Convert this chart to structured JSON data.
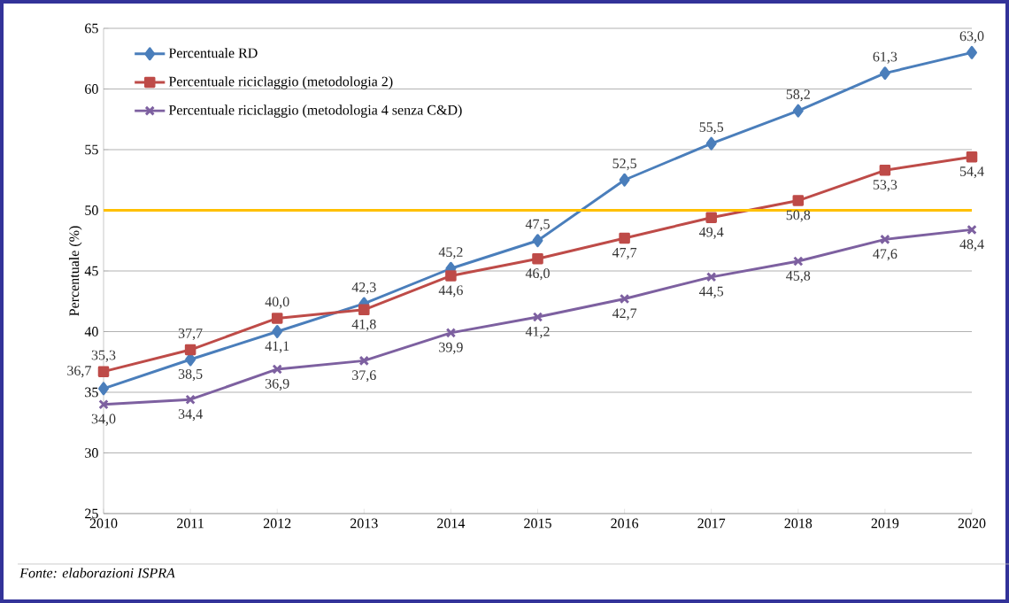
{
  "chart_data": {
    "type": "line",
    "ylabel": "Percentuale (%)",
    "categories": [
      "2010",
      "2011",
      "2012",
      "2013",
      "2014",
      "2015",
      "2016",
      "2017",
      "2018",
      "2019",
      "2020"
    ],
    "ylim": [
      25,
      65
    ],
    "yticks": [
      25,
      30,
      35,
      40,
      45,
      50,
      55,
      60,
      65
    ],
    "grid": "y",
    "legend": "top left",
    "line_style": "solid",
    "series": [
      {
        "name": "Percentuale RD",
        "color": "#4a7ebb",
        "marker": "diamond",
        "values": [
          35.3,
          37.7,
          40.0,
          42.3,
          45.2,
          47.5,
          52.5,
          55.5,
          58.2,
          61.3,
          63.0
        ],
        "value_labels": [
          "35,3",
          "37,7",
          "40,0",
          "42,3",
          "45,2",
          "47,5",
          "52,5",
          "55,5",
          "58,2",
          "61,3",
          "63,0"
        ]
      },
      {
        "name": "Percentuale riciclaggio (metodologia 2)",
        "color": "#be4b48",
        "marker": "square",
        "values": [
          36.7,
          38.5,
          41.1,
          41.8,
          44.6,
          46.0,
          47.7,
          49.4,
          50.8,
          53.3,
          54.4
        ],
        "value_labels": [
          "36,7",
          "38,5",
          "41,1",
          "41,8",
          "44,6",
          "46,0",
          "47,7",
          "49,4",
          "50,8",
          "53,3",
          "54,4"
        ]
      },
      {
        "name": "Percentuale riciclaggio (metodologia 4 senza C&D)",
        "color": "#7d60a0",
        "marker": "cross",
        "values": [
          34.0,
          34.4,
          36.9,
          37.6,
          39.9,
          41.2,
          42.7,
          44.5,
          45.8,
          47.6,
          48.4
        ],
        "value_labels": [
          "34,0",
          "34,4",
          "36,9",
          "37,6",
          "39,9",
          "41,2",
          "42,7",
          "44,5",
          "45,8",
          "47,6",
          "48,4"
        ]
      }
    ],
    "ref_lines": [
      {
        "axis": "y",
        "value": 50,
        "color": "#ffc000"
      }
    ],
    "annotations": [
      "Fonte: elaborazioni ISPRA"
    ]
  }
}
